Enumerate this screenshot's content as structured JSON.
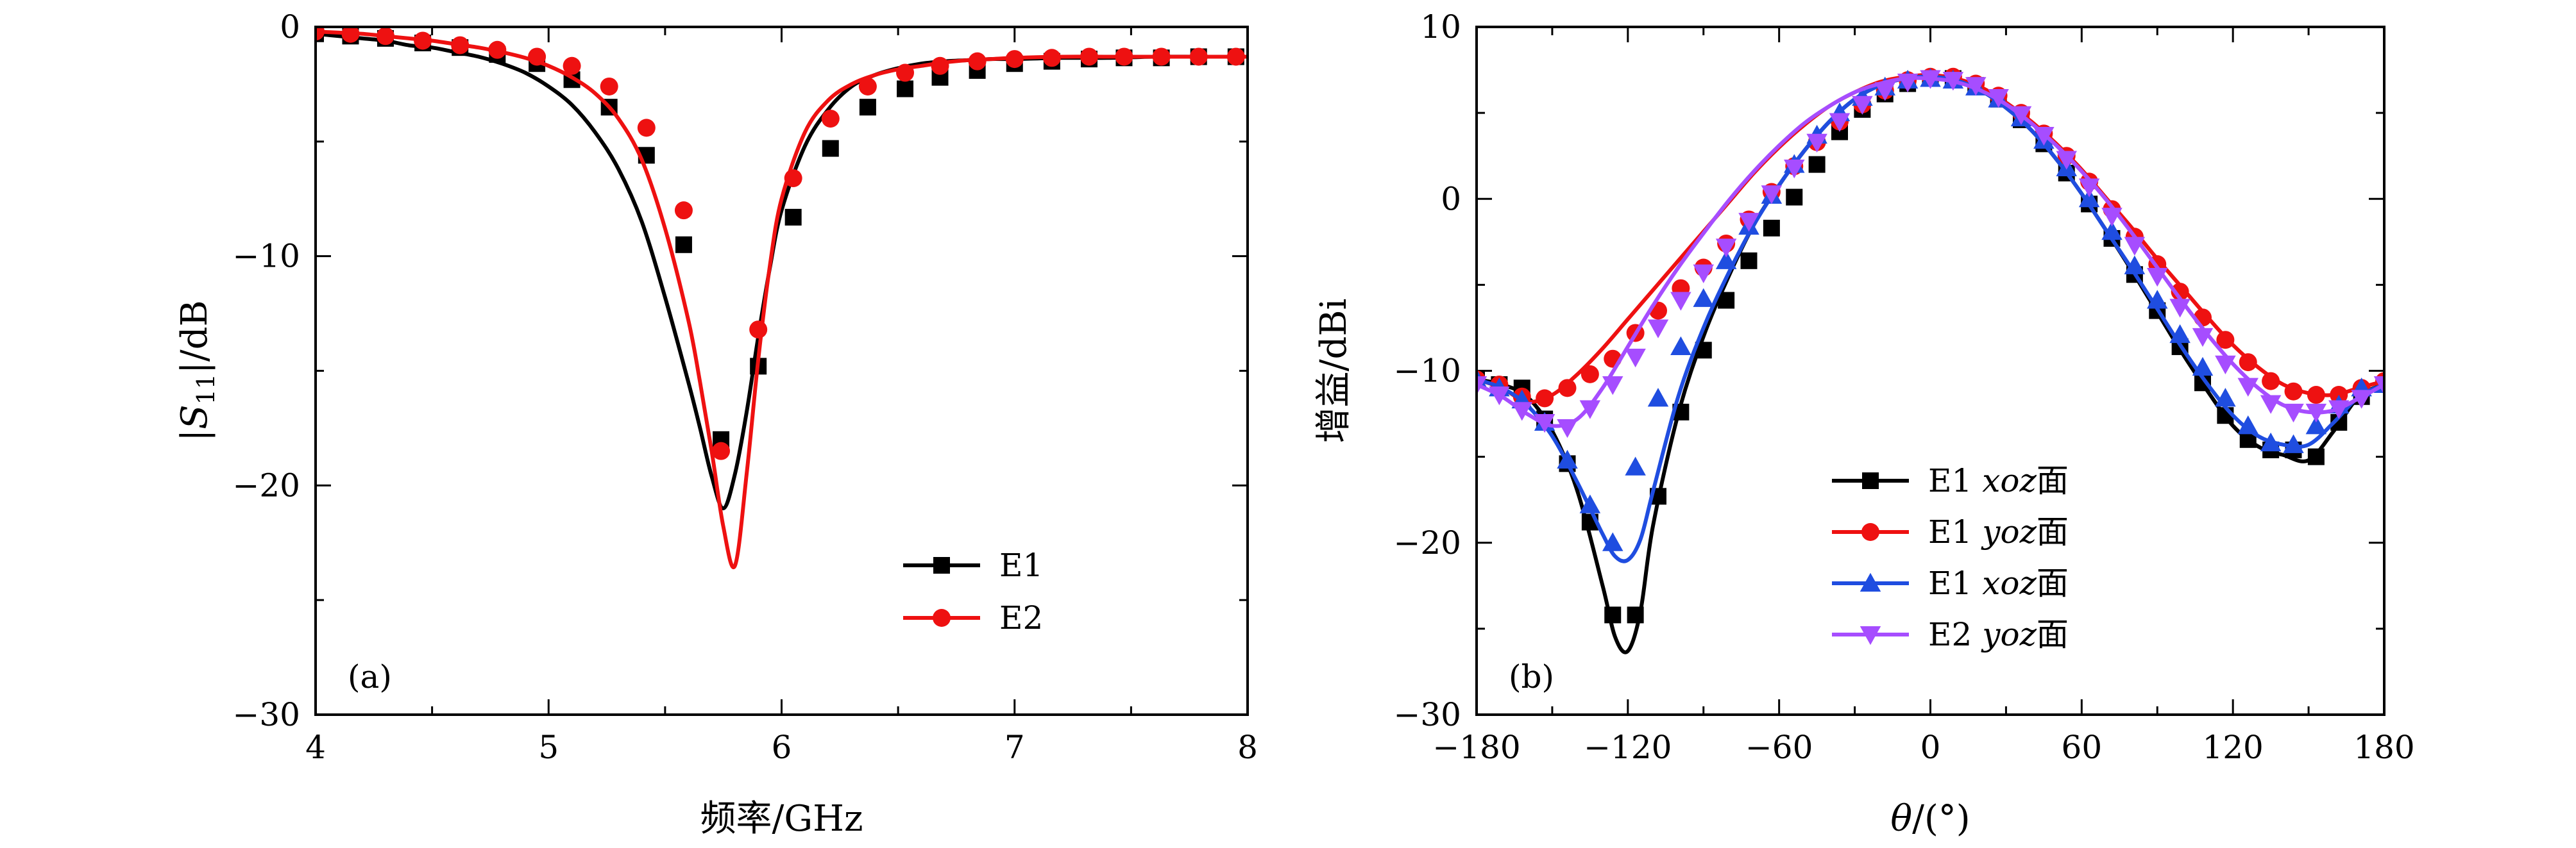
{
  "colors": {
    "E1_a": "#000000",
    "E2_a": "#ee1111",
    "b_s1": "#000000",
    "b_s2": "#ee1111",
    "b_s3": "#1f4de0",
    "b_s4": "#a64dff"
  },
  "chart_data": [
    {
      "panel": "(a)",
      "type": "line",
      "xlabel": "频率/GHz",
      "ylabel_main": "|S",
      "ylabel_sub": "11",
      "ylabel_tail": "|/dB",
      "xlim": [
        4,
        8
      ],
      "ylim": [
        -30,
        0
      ],
      "xticks": [
        4,
        5,
        6,
        7,
        8
      ],
      "xtick_labels": [
        "4",
        "5",
        "6",
        "7",
        "8"
      ],
      "yticks": [
        0,
        -10,
        -20,
        -30
      ],
      "ytick_labels": [
        "0",
        "−10",
        "−20",
        "−30"
      ],
      "grid": false,
      "legend_position": "lower-right",
      "series": [
        {
          "name": "E1",
          "marker": "square",
          "x": [
            4.0,
            4.1,
            4.2,
            4.3,
            4.4,
            4.5,
            4.6,
            4.7,
            4.8,
            4.9,
            5.0,
            5.1,
            5.2,
            5.3,
            5.4,
            5.5,
            5.6,
            5.65,
            5.7,
            5.75,
            5.8,
            5.85,
            5.9,
            5.95,
            6.0,
            6.1,
            6.2,
            6.3,
            6.4,
            6.5,
            6.6,
            6.7,
            6.8,
            6.9,
            7.0,
            7.2,
            7.4,
            7.6,
            7.8,
            8.0
          ],
          "y": [
            -0.3,
            -0.4,
            -0.5,
            -0.6,
            -0.8,
            -0.9,
            -1.1,
            -1.3,
            -1.6,
            -2.0,
            -2.6,
            -3.4,
            -4.6,
            -6.2,
            -8.5,
            -11.8,
            -15.5,
            -17.5,
            -19.6,
            -21.0,
            -19.5,
            -16.8,
            -13.5,
            -10.5,
            -8.0,
            -5.2,
            -3.6,
            -2.6,
            -2.1,
            -1.8,
            -1.6,
            -1.5,
            -1.45,
            -1.4,
            -1.4,
            -1.35,
            -1.35,
            -1.3,
            -1.3,
            -1.3
          ],
          "marker_x": [
            4.0,
            4.15,
            4.3,
            4.46,
            4.62,
            4.78,
            4.95,
            5.1,
            5.26,
            5.42,
            5.58,
            5.74,
            5.9,
            6.05,
            6.21,
            6.37,
            6.53,
            6.68,
            6.84,
            7.0,
            7.16,
            7.32,
            7.47,
            7.63,
            7.79,
            7.95
          ],
          "marker_y": [
            -0.3,
            -0.4,
            -0.5,
            -0.7,
            -0.9,
            -1.2,
            -1.6,
            -2.3,
            -3.5,
            -5.6,
            -9.5,
            -18.0,
            -14.8,
            -8.3,
            -5.3,
            -3.5,
            -2.7,
            -2.2,
            -1.9,
            -1.6,
            -1.5,
            -1.4,
            -1.35,
            -1.35,
            -1.3,
            -1.3
          ]
        },
        {
          "name": "E2",
          "marker": "circle",
          "x": [
            4.0,
            4.1,
            4.2,
            4.3,
            4.4,
            4.5,
            4.6,
            4.7,
            4.8,
            4.9,
            5.0,
            5.1,
            5.2,
            5.3,
            5.4,
            5.5,
            5.6,
            5.65,
            5.7,
            5.75,
            5.8,
            5.85,
            5.9,
            5.95,
            6.0,
            6.1,
            6.2,
            6.3,
            6.4,
            6.5,
            6.6,
            6.7,
            6.8,
            6.9,
            7.0,
            7.2,
            7.4,
            7.6,
            7.8,
            8.0
          ],
          "y": [
            -0.2,
            -0.25,
            -0.3,
            -0.4,
            -0.5,
            -0.6,
            -0.75,
            -0.9,
            -1.1,
            -1.35,
            -1.7,
            -2.2,
            -2.9,
            -4.0,
            -5.8,
            -8.8,
            -12.8,
            -15.5,
            -18.5,
            -21.8,
            -23.5,
            -19.5,
            -14.5,
            -10.4,
            -7.5,
            -4.6,
            -3.2,
            -2.5,
            -2.1,
            -1.85,
            -1.7,
            -1.55,
            -1.45,
            -1.4,
            -1.35,
            -1.3,
            -1.3,
            -1.3,
            -1.3,
            -1.3
          ],
          "marker_x": [
            4.0,
            4.15,
            4.3,
            4.46,
            4.62,
            4.78,
            4.95,
            5.1,
            5.26,
            5.42,
            5.58,
            5.74,
            5.9,
            6.05,
            6.21,
            6.37,
            6.53,
            6.68,
            6.84,
            7.0,
            7.16,
            7.32,
            7.47,
            7.63,
            7.79,
            7.95
          ],
          "marker_y": [
            -0.2,
            -0.3,
            -0.4,
            -0.6,
            -0.8,
            -1.0,
            -1.3,
            -1.7,
            -2.6,
            -4.4,
            -8.0,
            -18.5,
            -13.2,
            -6.6,
            -4.0,
            -2.6,
            -2.0,
            -1.7,
            -1.5,
            -1.4,
            -1.35,
            -1.3,
            -1.3,
            -1.3,
            -1.3,
            -1.3
          ]
        }
      ]
    },
    {
      "panel": "(b)",
      "type": "line",
      "xlabel_var": "θ",
      "xlabel_tail": "/(°)",
      "ylabel": "增益/dBi",
      "xlim": [
        -180,
        180
      ],
      "ylim": [
        -30,
        10
      ],
      "xticks": [
        -180,
        -120,
        -60,
        0,
        60,
        120,
        180
      ],
      "xtick_labels": [
        "−180",
        "−120",
        "−60",
        "0",
        "60",
        "120",
        "180"
      ],
      "yticks": [
        10,
        0,
        -10,
        -20,
        -30
      ],
      "ytick_labels": [
        "10",
        "0",
        "−10",
        "−20",
        "−30"
      ],
      "grid": false,
      "legend_position": "lower-center",
      "series": [
        {
          "name_main": "E1 ",
          "name_italic": "xoz",
          "name_tail": "面",
          "marker": "square",
          "x": [
            -180,
            -170,
            -160,
            -150,
            -140,
            -130,
            -125,
            -120,
            -115,
            -110,
            -100,
            -90,
            -80,
            -70,
            -60,
            -50,
            -40,
            -30,
            -20,
            -10,
            0,
            10,
            20,
            30,
            40,
            50,
            60,
            70,
            80,
            90,
            100,
            110,
            120,
            130,
            140,
            150,
            160,
            170,
            180
          ],
          "y": [
            -10.5,
            -10.8,
            -11.5,
            -13.5,
            -17.0,
            -22.5,
            -25.5,
            -26.3,
            -24.0,
            -19.0,
            -12.5,
            -8.0,
            -4.5,
            -1.5,
            0.8,
            2.8,
            4.5,
            5.8,
            6.6,
            7.0,
            7.1,
            6.9,
            6.3,
            5.3,
            4.0,
            2.3,
            0.3,
            -1.9,
            -4.2,
            -6.6,
            -9.0,
            -11.2,
            -13.2,
            -14.4,
            -14.9,
            -15.2,
            -13.5,
            -11.5,
            -10.8
          ],
          "marker_x": [
            -180,
            -171,
            -162,
            -153,
            -144,
            -135,
            -126,
            -117,
            -108,
            -99,
            -90,
            -81,
            -72,
            -63,
            -54,
            -45,
            -36,
            -27,
            -18,
            -9,
            0,
            9,
            18,
            27,
            36,
            45,
            54,
            63,
            72,
            81,
            90,
            99,
            108,
            117,
            126,
            135,
            144,
            153,
            162,
            171,
            180
          ],
          "marker_y": [
            -10.5,
            -10.8,
            -11.0,
            -12.8,
            -15.4,
            -18.8,
            -24.2,
            -24.2,
            -17.3,
            -12.4,
            -8.8,
            -5.9,
            -3.6,
            -1.7,
            0.1,
            2.0,
            3.9,
            5.2,
            6.1,
            6.7,
            7.0,
            7.0,
            6.6,
            5.8,
            4.6,
            3.2,
            1.5,
            -0.3,
            -2.3,
            -4.4,
            -6.5,
            -8.6,
            -10.7,
            -12.6,
            -14.0,
            -14.6,
            -14.6,
            -15.0,
            -13.0,
            -11.5,
            -10.8
          ]
        },
        {
          "name_main": "E1 ",
          "name_italic": "yoz",
          "name_tail": "面",
          "marker": "circle",
          "x": [
            -180,
            -170,
            -160,
            -150,
            -140,
            -130,
            -120,
            -110,
            -100,
            -90,
            -80,
            -70,
            -60,
            -50,
            -40,
            -30,
            -20,
            -10,
            0,
            10,
            20,
            30,
            40,
            50,
            60,
            70,
            80,
            90,
            100,
            110,
            120,
            130,
            140,
            150,
            160,
            170,
            180
          ],
          "y": [
            -10.5,
            -11.0,
            -11.8,
            -11.4,
            -10.2,
            -8.7,
            -7.0,
            -5.3,
            -3.6,
            -1.9,
            -0.2,
            1.5,
            3.0,
            4.3,
            5.4,
            6.2,
            6.8,
            7.1,
            7.2,
            7.0,
            6.5,
            5.6,
            4.5,
            3.2,
            1.7,
            0.0,
            -1.7,
            -3.5,
            -5.2,
            -6.9,
            -8.5,
            -9.8,
            -10.8,
            -11.3,
            -11.4,
            -11.0,
            -10.6
          ],
          "marker_x": [
            -180,
            -171,
            -162,
            -153,
            -144,
            -135,
            -126,
            -117,
            -108,
            -99,
            -90,
            -81,
            -72,
            -63,
            -54,
            -45,
            -36,
            -27,
            -18,
            -9,
            0,
            9,
            18,
            27,
            36,
            45,
            54,
            63,
            72,
            81,
            90,
            99,
            108,
            117,
            126,
            135,
            144,
            153,
            162,
            171,
            180
          ],
          "marker_y": [
            -10.5,
            -10.8,
            -11.5,
            -11.6,
            -11.0,
            -10.2,
            -9.3,
            -7.8,
            -6.5,
            -5.2,
            -4.0,
            -2.6,
            -1.2,
            0.4,
            1.9,
            3.3,
            4.5,
            5.5,
            6.3,
            6.9,
            7.1,
            7.1,
            6.7,
            6.0,
            5.0,
            3.8,
            2.5,
            1.0,
            -0.6,
            -2.2,
            -3.8,
            -5.4,
            -6.9,
            -8.2,
            -9.5,
            -10.6,
            -11.2,
            -11.4,
            -11.4,
            -11.0,
            -10.6
          ]
        },
        {
          "name_main": "E1 ",
          "name_italic": "xoz",
          "name_tail": "面",
          "marker": "triangle-up",
          "x": [
            -180,
            -170,
            -160,
            -150,
            -140,
            -130,
            -125,
            -120,
            -115,
            -110,
            -100,
            -90,
            -80,
            -70,
            -60,
            -50,
            -40,
            -30,
            -20,
            -10,
            0,
            10,
            20,
            30,
            40,
            50,
            60,
            70,
            80,
            90,
            100,
            110,
            120,
            130,
            140,
            150,
            160,
            170,
            180
          ],
          "y": [
            -10.5,
            -11.0,
            -12.0,
            -13.8,
            -16.5,
            -19.5,
            -20.8,
            -21.0,
            -19.8,
            -17.0,
            -11.5,
            -7.5,
            -4.3,
            -1.5,
            0.8,
            2.8,
            4.5,
            5.8,
            6.6,
            7.0,
            7.1,
            6.9,
            6.3,
            5.3,
            4.0,
            2.3,
            0.3,
            -1.9,
            -4.1,
            -6.4,
            -8.7,
            -10.8,
            -12.6,
            -13.8,
            -14.3,
            -14.3,
            -13.0,
            -11.5,
            -10.8
          ],
          "marker_x": [
            -180,
            -171,
            -162,
            -153,
            -144,
            -135,
            -126,
            -117,
            -108,
            -99,
            -90,
            -81,
            -72,
            -63,
            -54,
            -45,
            -36,
            -27,
            -18,
            -9,
            0,
            9,
            18,
            27,
            36,
            45,
            54,
            63,
            72,
            81,
            90,
            99,
            108,
            117,
            126,
            135,
            144,
            153,
            162,
            171,
            180
          ],
          "marker_y": [
            -10.5,
            -11.0,
            -11.7,
            -13.0,
            -15.2,
            -17.8,
            -20.0,
            -15.6,
            -11.6,
            -8.6,
            -5.8,
            -3.6,
            -1.6,
            0.2,
            2.0,
            3.7,
            5.0,
            5.9,
            6.5,
            6.9,
            7.0,
            6.9,
            6.5,
            5.8,
            4.7,
            3.4,
            1.8,
            0.0,
            -1.9,
            -3.9,
            -5.9,
            -7.9,
            -9.8,
            -11.6,
            -13.2,
            -14.2,
            -14.3,
            -13.2,
            -12.0,
            -11.0,
            -10.8
          ]
        },
        {
          "name_main": "E2 ",
          "name_italic": "yoz",
          "name_tail": "面",
          "marker": "triangle-down",
          "x": [
            -180,
            -170,
            -160,
            -150,
            -140,
            -130,
            -120,
            -110,
            -100,
            -90,
            -80,
            -70,
            -60,
            -50,
            -40,
            -30,
            -20,
            -10,
            0,
            10,
            20,
            30,
            40,
            50,
            60,
            70,
            80,
            90,
            100,
            110,
            120,
            130,
            140,
            150,
            160,
            170,
            180
          ],
          "y": [
            -10.8,
            -11.5,
            -12.5,
            -13.2,
            -12.8,
            -11.0,
            -8.6,
            -6.2,
            -4.0,
            -2.0,
            -0.1,
            1.6,
            3.1,
            4.4,
            5.4,
            6.2,
            6.7,
            7.0,
            7.0,
            6.8,
            6.3,
            5.5,
            4.4,
            3.1,
            1.6,
            -0.1,
            -2.0,
            -4.0,
            -6.0,
            -7.9,
            -9.6,
            -11.0,
            -12.0,
            -12.4,
            -12.3,
            -11.6,
            -10.8
          ],
          "marker_x": [
            -180,
            -171,
            -162,
            -153,
            -144,
            -135,
            -126,
            -117,
            -108,
            -99,
            -90,
            -81,
            -72,
            -63,
            -54,
            -45,
            -36,
            -27,
            -18,
            -9,
            0,
            9,
            18,
            27,
            36,
            45,
            54,
            63,
            72,
            81,
            90,
            99,
            108,
            117,
            126,
            135,
            144,
            153,
            162,
            171,
            180
          ],
          "marker_y": [
            -10.8,
            -11.4,
            -12.3,
            -13.0,
            -13.3,
            -12.2,
            -10.8,
            -9.2,
            -7.5,
            -5.9,
            -4.3,
            -2.8,
            -1.3,
            0.3,
            1.8,
            3.3,
            4.5,
            5.5,
            6.3,
            6.8,
            7.0,
            6.9,
            6.6,
            5.9,
            4.9,
            3.7,
            2.3,
            0.7,
            -1.0,
            -2.7,
            -4.5,
            -6.3,
            -8.0,
            -9.6,
            -10.9,
            -11.9,
            -12.4,
            -12.4,
            -12.2,
            -11.6,
            -10.8
          ]
        }
      ]
    }
  ]
}
